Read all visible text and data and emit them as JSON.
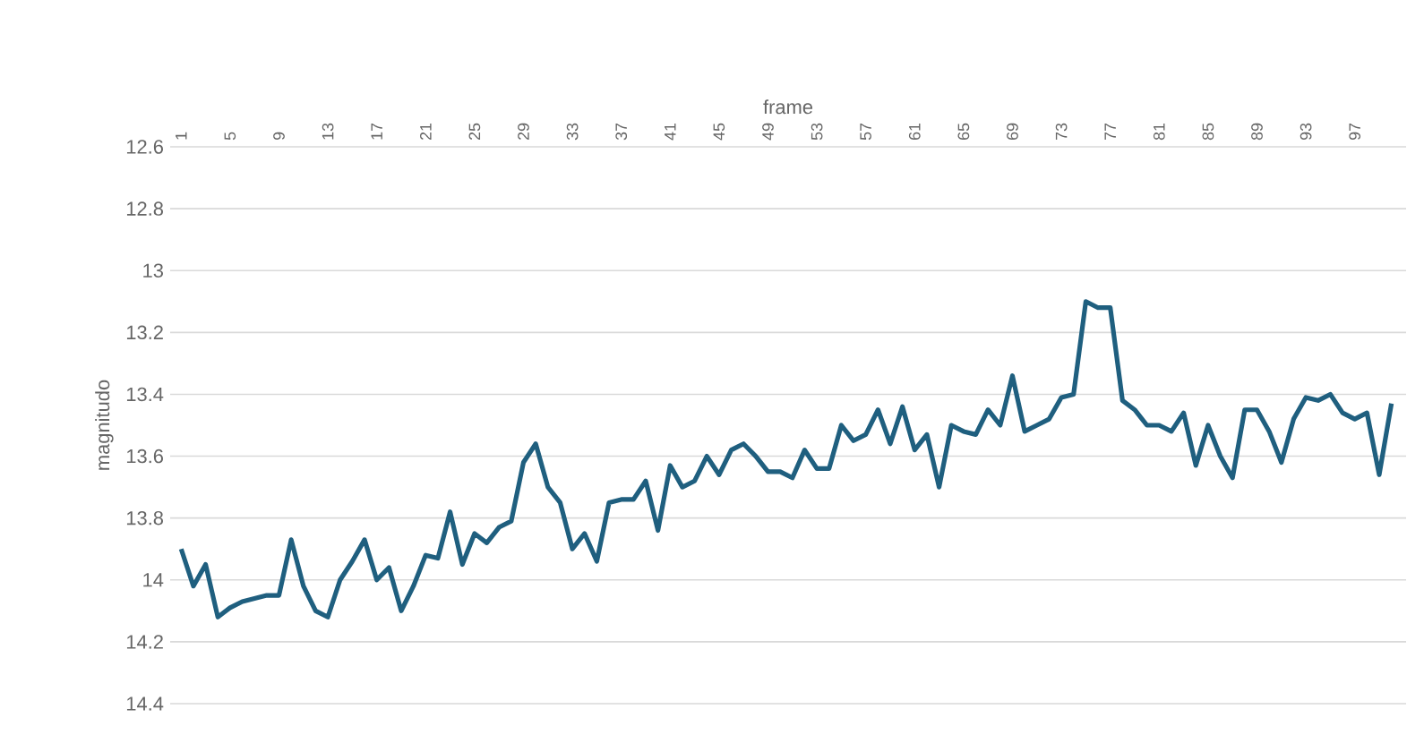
{
  "chart_data": {
    "type": "line",
    "xlabel": "frame",
    "ylabel": "magnitudo",
    "categories": [
      "1",
      null,
      null,
      null,
      "5",
      null,
      null,
      null,
      "9",
      null,
      null,
      null,
      "13",
      null,
      null,
      null,
      "17",
      null,
      null,
      null,
      "21",
      null,
      null,
      null,
      "25",
      null,
      null,
      null,
      "29",
      null,
      null,
      null,
      "33",
      null,
      null,
      null,
      "37",
      null,
      null,
      null,
      "41",
      null,
      null,
      null,
      "45",
      null,
      null,
      null,
      "49",
      null,
      null,
      null,
      "53",
      null,
      null,
      null,
      "57",
      null,
      null,
      null,
      "61",
      null,
      null,
      null,
      "65",
      null,
      null,
      null,
      "69",
      null,
      null,
      null,
      "73",
      null,
      null,
      null,
      "77",
      null,
      null,
      null,
      "81",
      null,
      null,
      null,
      "85",
      null,
      null,
      null,
      "89",
      null,
      null,
      null,
      "93",
      null,
      null,
      null,
      "97",
      null,
      null,
      null
    ],
    "series": [
      {
        "color": "#1f5f7f",
        "values": [
          13.9,
          14.02,
          13.95,
          14.12,
          14.09,
          14.07,
          14.06,
          14.05,
          14.05,
          13.87,
          14.02,
          14.1,
          14.12,
          14.0,
          13.94,
          13.87,
          14.0,
          13.96,
          14.1,
          14.02,
          13.92,
          13.93,
          13.78,
          13.95,
          13.85,
          13.88,
          13.83,
          13.81,
          13.62,
          13.56,
          13.7,
          13.75,
          13.9,
          13.85,
          13.94,
          13.75,
          13.74,
          13.74,
          13.68,
          13.84,
          13.63,
          13.7,
          13.68,
          13.6,
          13.66,
          13.58,
          13.56,
          13.6,
          13.65,
          13.65,
          13.67,
          13.58,
          13.64,
          13.64,
          13.5,
          13.55,
          13.53,
          13.45,
          13.56,
          13.44,
          13.58,
          13.53,
          13.7,
          13.5,
          13.52,
          13.53,
          13.45,
          13.5,
          13.34,
          13.52,
          13.5,
          13.48,
          13.41,
          13.4,
          13.1,
          13.12,
          13.12,
          13.42,
          13.45,
          13.5,
          13.5,
          13.52,
          13.46,
          13.63,
          13.5,
          13.6,
          13.67,
          13.45,
          13.45,
          13.52,
          13.62,
          13.48,
          13.41,
          13.42,
          13.4,
          13.46,
          13.48,
          13.46,
          13.66,
          13.43
        ]
      }
    ],
    "ylim": [
      14.4,
      12.6
    ],
    "yticks": [
      12.6,
      12.8,
      13,
      13.2,
      13.4,
      13.6,
      13.8,
      14,
      14.2,
      14.4
    ],
    "grid": "y",
    "marker": "none",
    "line_style": "solid"
  }
}
